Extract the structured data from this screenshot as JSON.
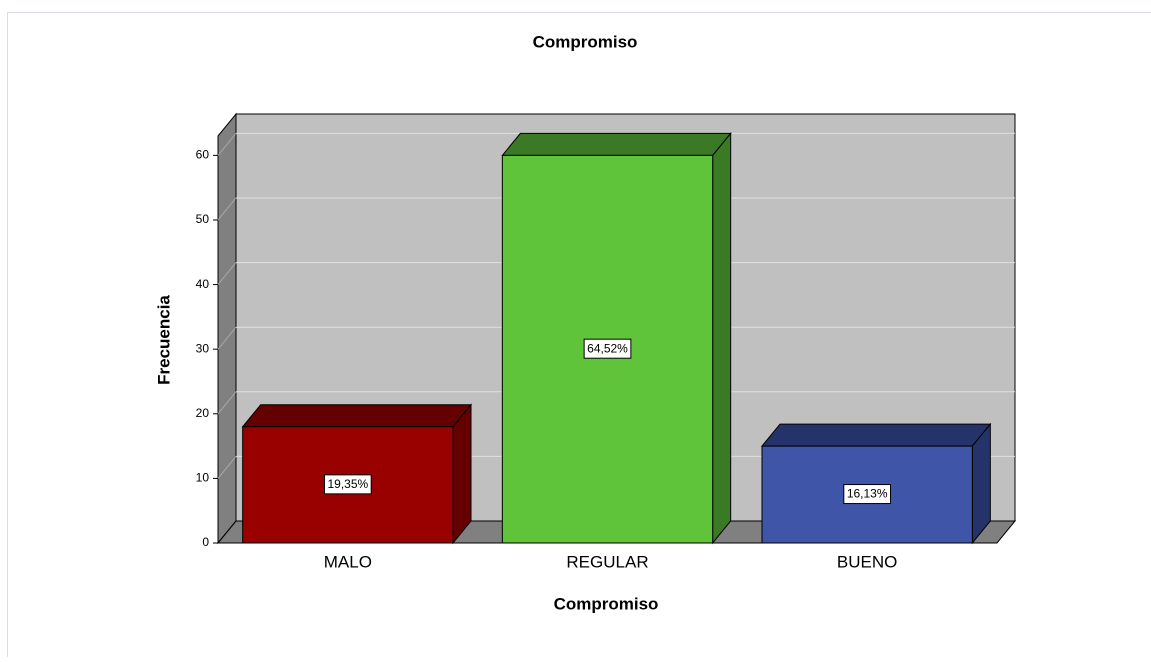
{
  "chart_data": {
    "type": "bar3d",
    "title": "Compromiso",
    "x_label": "Compromiso",
    "y_label": "Frecuencia",
    "categories": [
      "MALO",
      "REGULAR",
      "BUENO"
    ],
    "values": [
      18,
      60,
      15
    ],
    "percent_labels": [
      "19,35%",
      "64,52%",
      "16,13%"
    ],
    "colors": [
      "#990000",
      "#5fc43a",
      "#3f56a8"
    ],
    "shade_colors": [
      "#640000",
      "#3a7a25",
      "#24336a"
    ],
    "ylim": [
      0,
      63
    ],
    "yticks": [
      0,
      10,
      20,
      30,
      40,
      50,
      60
    ],
    "grid": true
  }
}
